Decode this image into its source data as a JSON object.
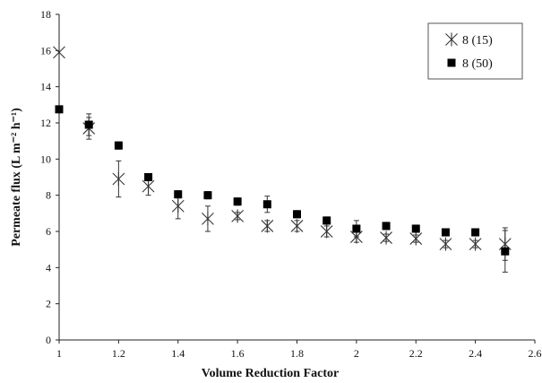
{
  "chart_data": {
    "type": "scatter",
    "title": "",
    "xlabel": "Volume Reduction Factor",
    "ylabel": "Permeate flux (L m⁻² h⁻¹)",
    "xlim": [
      1,
      2.6
    ],
    "ylim": [
      0,
      18
    ],
    "xticks": [
      1,
      1.2,
      1.4,
      1.6,
      1.8,
      2,
      2.2,
      2.4,
      2.6
    ],
    "xtick_labels": [
      "1",
      "1.2",
      "1.4",
      "1.6",
      "1.8",
      "2",
      "2.2",
      "2.4",
      "2.6"
    ],
    "yticks": [
      0,
      2,
      4,
      6,
      8,
      10,
      12,
      14,
      16,
      18
    ],
    "ytick_labels": [
      "0",
      "2",
      "4",
      "6",
      "8",
      "10",
      "12",
      "14",
      "16",
      "18"
    ],
    "grid": false,
    "legend_position": "top-right",
    "series": [
      {
        "name": "8 (15)",
        "marker": "asterisk",
        "color": "#333333",
        "x": [
          1.0,
          1.1,
          1.2,
          1.3,
          1.4,
          1.5,
          1.6,
          1.7,
          1.8,
          1.9,
          2.0,
          2.1,
          2.2,
          2.3,
          2.4,
          2.5
        ],
        "y": [
          15.9,
          11.7,
          8.9,
          8.5,
          7.4,
          6.7,
          6.85,
          6.3,
          6.3,
          6.0,
          5.7,
          5.65,
          5.6,
          5.3,
          5.3,
          5.3
        ],
        "err": [
          0,
          0.6,
          1.0,
          0.5,
          0.7,
          0.7,
          0.2,
          0.3,
          0.3,
          0.3,
          0.3,
          0.2,
          0.2,
          0.2,
          0.2,
          0.9
        ]
      },
      {
        "name": "8 (50)",
        "marker": "square",
        "color": "#000000",
        "x": [
          1.0,
          1.1,
          1.2,
          1.3,
          1.4,
          1.5,
          1.6,
          1.7,
          1.8,
          1.9,
          2.0,
          2.1,
          2.2,
          2.3,
          2.4,
          2.5
        ],
        "y": [
          12.75,
          11.9,
          10.75,
          9.0,
          8.05,
          8.0,
          7.65,
          7.5,
          6.95,
          6.6,
          6.15,
          6.3,
          6.15,
          5.95,
          5.95,
          4.9
        ],
        "err": [
          0,
          0.6,
          0.2,
          0.2,
          0.2,
          0.2,
          0.2,
          0.45,
          0.2,
          0.2,
          0.45,
          0.2,
          0.2,
          0.2,
          0.2,
          1.15
        ]
      }
    ]
  }
}
